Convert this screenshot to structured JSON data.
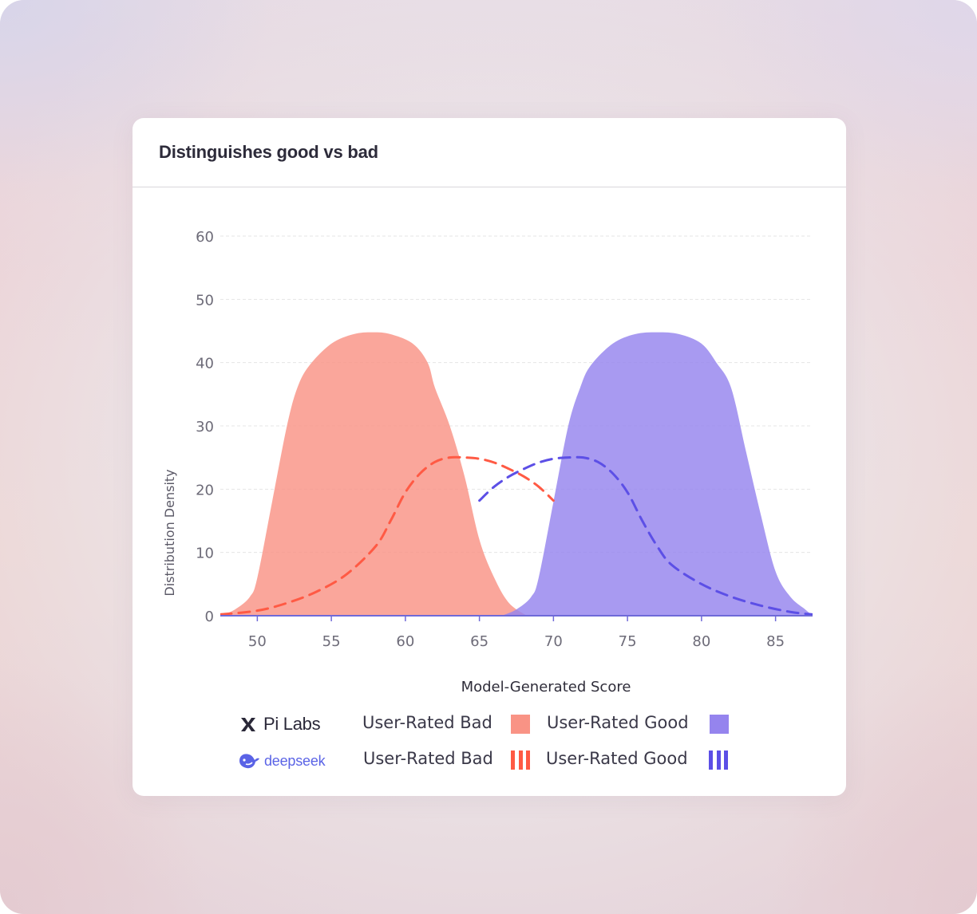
{
  "card": {
    "title": "Distinguishes good vs bad"
  },
  "colors": {
    "bad_fill": "#f99385",
    "good_fill": "#9584ee",
    "bad_dash": "#ff5a44",
    "good_dash": "#5c4fe6",
    "axis": "#6f6ad8",
    "grid": "#e5e5e5",
    "tick_text": "#6d6b78"
  },
  "legend": {
    "pi_labs": {
      "name": "Pi Labs",
      "bad_label": "User-Rated Bad",
      "good_label": "User-Rated Good",
      "style": "solid-fill"
    },
    "deepseek": {
      "name": "deepseek",
      "bad_label": "User-Rated Bad",
      "good_label": "User-Rated Good",
      "style": "dashed-line"
    }
  },
  "chart_data": {
    "type": "area",
    "xlabel": "Model-Generated Score",
    "ylabel": "Distribution Density",
    "xlim": [
      47.5,
      87.5
    ],
    "ylim": [
      0,
      60
    ],
    "xticks": [
      50,
      55,
      60,
      65,
      70,
      75,
      80,
      85
    ],
    "yticks": [
      0,
      10,
      20,
      30,
      40,
      50,
      60
    ],
    "grid": true,
    "series": [
      {
        "name": "Pi Labs — User-Rated Bad",
        "style": "filled area",
        "x": [
          47.5,
          48.5,
          49.5,
          50,
          51,
          52,
          52.7,
          53.5,
          55,
          56.5,
          57.8,
          59,
          60.5,
          61.5,
          62,
          63,
          64,
          65,
          66,
          67,
          68.2
        ],
        "y": [
          0,
          1,
          3,
          6,
          18,
          30,
          36,
          39.5,
          43,
          44.5,
          44.8,
          44.5,
          43,
          40,
          36,
          30,
          22,
          12,
          6,
          2,
          0
        ]
      },
      {
        "name": "Pi Labs — User-Rated Good",
        "style": "filled area",
        "x": [
          66.5,
          67.5,
          68.5,
          69,
          70,
          71,
          71.8,
          72.5,
          74,
          75.5,
          77,
          78.5,
          80,
          81,
          82,
          83,
          84,
          85,
          86,
          87,
          87.5
        ],
        "y": [
          0,
          1,
          3,
          6,
          18,
          30,
          36,
          39.5,
          43,
          44.5,
          44.8,
          44.5,
          43,
          40,
          36,
          26,
          16,
          7,
          3,
          1,
          0
        ]
      },
      {
        "name": "deepseek — User-Rated Bad",
        "style": "dashed line",
        "x": [
          47.5,
          50,
          52,
          54,
          56,
          58,
          59,
          60,
          61,
          62,
          63,
          64,
          65,
          66,
          67,
          68,
          69,
          70
        ],
        "y": [
          0.2,
          0.8,
          2,
          3.8,
          6.5,
          11,
          15,
          19.5,
          22.5,
          24.3,
          25,
          25,
          24.8,
          24.2,
          23.2,
          22,
          20.4,
          18.2
        ]
      },
      {
        "name": "deepseek — User-Rated Good",
        "style": "dashed line",
        "x": [
          65,
          66,
          67,
          68,
          69,
          70,
          71,
          72,
          73,
          74,
          75,
          76,
          77,
          78,
          80,
          82,
          84,
          86,
          87.5
        ],
        "y": [
          18.2,
          20.4,
          22,
          23.2,
          24.2,
          24.8,
          25,
          25,
          24.3,
          22.5,
          19.5,
          15,
          11,
          8,
          5,
          3,
          1.6,
          0.6,
          0.2
        ]
      }
    ]
  }
}
